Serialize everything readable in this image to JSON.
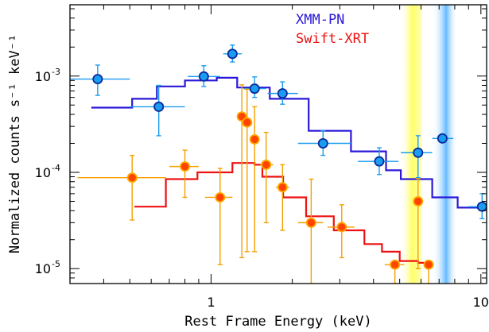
{
  "chart_data": {
    "type": "scatter",
    "xlabel": "Rest Frame Energy (keV)",
    "ylabel": "Normalized counts s⁻¹ keV⁻¹",
    "x_scale": "log",
    "y_scale": "log",
    "xlim": [
      0.3,
      10.5
    ],
    "ylim": [
      7e-06,
      0.0055
    ],
    "grid": false,
    "legend_position": "top-right",
    "x_tick_labels": [
      {
        "value": 1,
        "label": "1"
      },
      {
        "value": 10,
        "label": "10"
      }
    ],
    "y_tick_labels": [
      {
        "value": 0.001,
        "base": "10",
        "exp": "-3"
      },
      {
        "value": 0.0001,
        "base": "10",
        "exp": "-4"
      },
      {
        "value": 1e-05,
        "base": "10",
        "exp": "-5"
      }
    ],
    "bands": [
      {
        "x0": 5.0,
        "x1": 6.05,
        "color": "#ffff66"
      },
      {
        "x0": 6.6,
        "x1": 8.2,
        "color": "#66bbff"
      }
    ],
    "series": [
      {
        "name": "XMM-PN",
        "label_color": "#2a18d8",
        "line_color": "#2a18d8",
        "marker_color": "#1a9cf0",
        "marker_edge": "#0a2a9a",
        "error_color": "#1a9cf0",
        "points": [
          {
            "x": 0.38,
            "xlo": 0.3,
            "xhi": 0.5,
            "y": 0.00093,
            "ylo": 0.00063,
            "yhi": 0.0013
          },
          {
            "x": 0.64,
            "xlo": 0.5,
            "xhi": 0.8,
            "y": 0.00048,
            "ylo": 0.00024,
            "yhi": 0.0008
          },
          {
            "x": 0.94,
            "xlo": 0.82,
            "xhi": 1.08,
            "y": 0.00099,
            "ylo": 0.00078,
            "yhi": 0.00128
          },
          {
            "x": 1.2,
            "xlo": 1.11,
            "xhi": 1.3,
            "y": 0.0017,
            "ylo": 0.0014,
            "yhi": 0.0021
          },
          {
            "x": 1.45,
            "xlo": 1.32,
            "xhi": 1.6,
            "y": 0.00074,
            "ylo": 0.0006,
            "yhi": 0.00098
          },
          {
            "x": 1.84,
            "xlo": 1.62,
            "xhi": 2.1,
            "y": 0.00066,
            "ylo": 0.00051,
            "yhi": 0.00087
          },
          {
            "x": 2.6,
            "xlo": 2.1,
            "xhi": 3.3,
            "y": 0.0002,
            "ylo": 0.00015,
            "yhi": 0.00027
          },
          {
            "x": 4.2,
            "xlo": 3.5,
            "xhi": 4.95,
            "y": 0.00013,
            "ylo": 9.5e-05,
            "yhi": 0.00018
          },
          {
            "x": 5.85,
            "xlo": 5.05,
            "xhi": 6.6,
            "y": 0.00016,
            "ylo": 8.8e-05,
            "yhi": 0.00024
          },
          {
            "x": 7.2,
            "xlo": 6.6,
            "xhi": 7.9,
            "y": 0.000225,
            "ylo": 0.000225,
            "yhi": 0.000225
          },
          {
            "x": 10.1,
            "xlo": 9.0,
            "xhi": 10.5,
            "y": 4.4e-05,
            "ylo": 3.3e-05,
            "yhi": 6e-05
          }
        ],
        "model_steps": [
          {
            "x0": 0.36,
            "x1": 0.51,
            "y": 0.00047
          },
          {
            "x0": 0.51,
            "x1": 0.63,
            "y": 0.00058
          },
          {
            "x0": 0.63,
            "x1": 0.8,
            "y": 0.00078
          },
          {
            "x0": 0.8,
            "x1": 1.05,
            "y": 0.0009
          },
          {
            "x0": 1.05,
            "x1": 1.25,
            "y": 0.00096
          },
          {
            "x0": 1.25,
            "x1": 1.65,
            "y": 0.00076
          },
          {
            "x0": 1.65,
            "x1": 2.3,
            "y": 0.00058
          },
          {
            "x0": 2.3,
            "x1": 3.3,
            "y": 0.00027
          },
          {
            "x0": 3.3,
            "x1": 4.45,
            "y": 0.000165
          },
          {
            "x0": 4.45,
            "x1": 5.05,
            "y": 0.000105
          },
          {
            "x0": 5.05,
            "x1": 6.6,
            "y": 8.5e-05
          },
          {
            "x0": 6.6,
            "x1": 8.2,
            "y": 5.5e-05
          },
          {
            "x0": 8.2,
            "x1": 10.5,
            "y": 4.3e-05
          }
        ]
      },
      {
        "name": "Swift-XRT",
        "label_color": "#ee1111",
        "line_color": "#ee1111",
        "marker_color": "#ff4400",
        "marker_edge": "#ffaa00",
        "error_color": "#f5a000",
        "points": [
          {
            "x": 0.51,
            "xlo": 0.32,
            "xhi": 0.68,
            "y": 8.8e-05,
            "ylo": 3.2e-05,
            "yhi": 0.00015
          },
          {
            "x": 0.8,
            "xlo": 0.7,
            "xhi": 0.9,
            "y": 0.000115,
            "ylo": 5.5e-05,
            "yhi": 0.00017
          },
          {
            "x": 1.08,
            "xlo": 0.95,
            "xhi": 1.2,
            "y": 5.5e-05,
            "ylo": 1.1e-05,
            "yhi": 0.00011
          },
          {
            "x": 1.3,
            "xlo": 1.26,
            "xhi": 1.34,
            "y": 0.00038,
            "ylo": 1.3e-05,
            "yhi": 0.00081
          },
          {
            "x": 1.36,
            "xlo": 1.33,
            "xhi": 1.4,
            "y": 0.00033,
            "ylo": 1.5e-05,
            "yhi": 0.00073
          },
          {
            "x": 1.45,
            "xlo": 1.41,
            "xhi": 1.5,
            "y": 0.00022,
            "ylo": 1.5e-05,
            "yhi": 0.00048
          },
          {
            "x": 1.6,
            "xlo": 1.52,
            "xhi": 1.7,
            "y": 0.00012,
            "ylo": 3e-05,
            "yhi": 0.00026
          },
          {
            "x": 1.84,
            "xlo": 1.74,
            "xhi": 1.95,
            "y": 7e-05,
            "ylo": 2.5e-05,
            "yhi": 0.00012
          },
          {
            "x": 2.35,
            "xlo": 2.1,
            "xhi": 2.6,
            "y": 3e-05,
            "ylo": 7e-06,
            "yhi": 8.5e-05
          },
          {
            "x": 3.05,
            "xlo": 2.7,
            "xhi": 3.4,
            "y": 2.7e-05,
            "ylo": 1.3e-05,
            "yhi": 4.6e-05
          },
          {
            "x": 4.8,
            "xlo": 4.4,
            "xhi": 5.2,
            "y": 1.1e-05,
            "ylo": 7e-06,
            "yhi": 1.1e-05
          },
          {
            "x": 5.85,
            "xlo": 5.7,
            "xhi": 6.05,
            "y": 5e-05,
            "ylo": 1e-05,
            "yhi": 8.6e-05
          },
          {
            "x": 6.4,
            "xlo": 6.15,
            "xhi": 6.65,
            "y": 1.1e-05,
            "ylo": 7e-06,
            "yhi": 1.1e-05
          }
        ],
        "model_steps": [
          {
            "x0": 0.52,
            "x1": 0.68,
            "y": 4.4e-05
          },
          {
            "x0": 0.68,
            "x1": 0.89,
            "y": 8.5e-05
          },
          {
            "x0": 0.89,
            "x1": 1.2,
            "y": 0.0001
          },
          {
            "x0": 1.2,
            "x1": 1.45,
            "y": 0.000125
          },
          {
            "x0": 1.45,
            "x1": 1.55,
            "y": 0.00012
          },
          {
            "x0": 1.55,
            "x1": 1.85,
            "y": 9e-05
          },
          {
            "x0": 1.85,
            "x1": 2.25,
            "y": 5.5e-05
          },
          {
            "x0": 2.25,
            "x1": 2.85,
            "y": 3.5e-05
          },
          {
            "x0": 2.85,
            "x1": 3.7,
            "y": 2.5e-05
          },
          {
            "x0": 3.7,
            "x1": 4.3,
            "y": 1.8e-05
          },
          {
            "x0": 4.3,
            "x1": 5.0,
            "y": 1.5e-05
          },
          {
            "x0": 5.0,
            "x1": 5.85,
            "y": 1.2e-05
          },
          {
            "x0": 5.85,
            "x1": 6.6,
            "y": 1.15e-05
          }
        ]
      }
    ]
  }
}
